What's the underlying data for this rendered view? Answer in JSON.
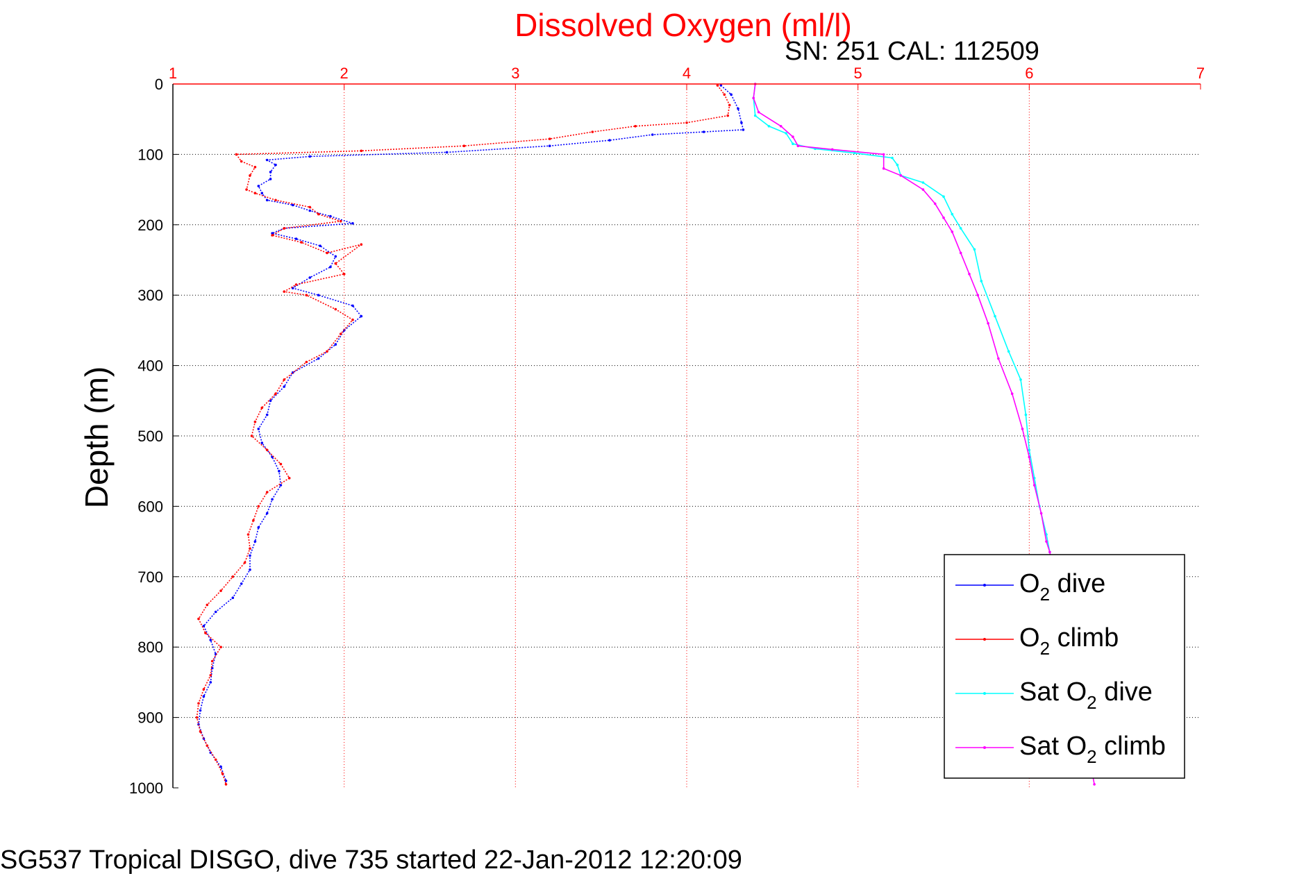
{
  "chart_data": {
    "type": "line",
    "title": "Dissolved Oxygen (ml/l)",
    "subtitle": "SN: 251  CAL: 112509",
    "ylabel": "Depth (m)",
    "xlabel": "",
    "footer": "SG537 Tropical DISGO, dive 735 started 22-Jan-2012 12:20:09",
    "xlim": [
      1,
      7
    ],
    "ylim": [
      0,
      1000
    ],
    "y_reversed": true,
    "x_axis_position": "top",
    "x_ticks": [
      "1",
      "2",
      "3",
      "4",
      "5",
      "6",
      "7"
    ],
    "y_ticks": [
      "0",
      "100",
      "200",
      "300",
      "400",
      "500",
      "600",
      "700",
      "800",
      "900",
      "1000"
    ],
    "grid": true,
    "legend_position": "bottom-right",
    "series": [
      {
        "name_main": "O",
        "name_sub": "2",
        "name_tail": " dive",
        "color": "#0000ff",
        "points": [
          [
            4.2,
            2
          ],
          [
            4.26,
            15
          ],
          [
            4.3,
            35
          ],
          [
            4.32,
            55
          ],
          [
            4.33,
            65
          ],
          [
            4.1,
            68
          ],
          [
            3.8,
            72
          ],
          [
            3.55,
            80
          ],
          [
            3.2,
            88
          ],
          [
            2.6,
            97
          ],
          [
            1.8,
            103
          ],
          [
            1.55,
            108
          ],
          [
            1.6,
            115
          ],
          [
            1.57,
            125
          ],
          [
            1.57,
            135
          ],
          [
            1.5,
            145
          ],
          [
            1.52,
            155
          ],
          [
            1.55,
            165
          ],
          [
            1.7,
            172
          ],
          [
            1.8,
            180
          ],
          [
            1.92,
            188
          ],
          [
            2.05,
            198
          ],
          [
            1.65,
            205
          ],
          [
            1.58,
            212
          ],
          [
            1.72,
            220
          ],
          [
            1.86,
            230
          ],
          [
            1.95,
            245
          ],
          [
            1.92,
            260
          ],
          [
            1.8,
            275
          ],
          [
            1.7,
            290
          ],
          [
            1.85,
            300
          ],
          [
            2.05,
            315
          ],
          [
            2.1,
            330
          ],
          [
            2.0,
            350
          ],
          [
            1.95,
            370
          ],
          [
            1.85,
            390
          ],
          [
            1.7,
            410
          ],
          [
            1.65,
            430
          ],
          [
            1.57,
            450
          ],
          [
            1.55,
            470
          ],
          [
            1.5,
            490
          ],
          [
            1.52,
            510
          ],
          [
            1.58,
            530
          ],
          [
            1.62,
            550
          ],
          [
            1.63,
            570
          ],
          [
            1.58,
            590
          ],
          [
            1.55,
            610
          ],
          [
            1.5,
            630
          ],
          [
            1.48,
            650
          ],
          [
            1.45,
            670
          ],
          [
            1.45,
            690
          ],
          [
            1.4,
            710
          ],
          [
            1.35,
            730
          ],
          [
            1.25,
            750
          ],
          [
            1.18,
            770
          ],
          [
            1.22,
            790
          ],
          [
            1.25,
            810
          ],
          [
            1.23,
            830
          ],
          [
            1.22,
            850
          ],
          [
            1.18,
            870
          ],
          [
            1.16,
            890
          ],
          [
            1.15,
            910
          ],
          [
            1.18,
            930
          ],
          [
            1.22,
            950
          ],
          [
            1.28,
            970
          ],
          [
            1.31,
            990
          ]
        ]
      },
      {
        "name_main": "O",
        "name_sub": "2",
        "name_tail": " climb",
        "color": "#ff0000",
        "points": [
          [
            4.18,
            2
          ],
          [
            4.22,
            15
          ],
          [
            4.25,
            30
          ],
          [
            4.24,
            45
          ],
          [
            4.0,
            55
          ],
          [
            3.7,
            60
          ],
          [
            3.45,
            68
          ],
          [
            3.2,
            78
          ],
          [
            2.7,
            88
          ],
          [
            2.1,
            95
          ],
          [
            1.37,
            100
          ],
          [
            1.4,
            110
          ],
          [
            1.48,
            118
          ],
          [
            1.45,
            130
          ],
          [
            1.43,
            150
          ],
          [
            1.48,
            155
          ],
          [
            1.6,
            165
          ],
          [
            1.8,
            175
          ],
          [
            1.85,
            185
          ],
          [
            1.98,
            195
          ],
          [
            1.65,
            205
          ],
          [
            1.58,
            215
          ],
          [
            1.75,
            225
          ],
          [
            1.9,
            240
          ],
          [
            2.1,
            228
          ],
          [
            1.95,
            255
          ],
          [
            2.0,
            270
          ],
          [
            1.72,
            285
          ],
          [
            1.65,
            295
          ],
          [
            1.78,
            300
          ],
          [
            1.95,
            320
          ],
          [
            2.05,
            335
          ],
          [
            1.98,
            355
          ],
          [
            1.9,
            380
          ],
          [
            1.78,
            395
          ],
          [
            1.65,
            420
          ],
          [
            1.6,
            440
          ],
          [
            1.52,
            460
          ],
          [
            1.48,
            480
          ],
          [
            1.46,
            500
          ],
          [
            1.55,
            520
          ],
          [
            1.63,
            540
          ],
          [
            1.68,
            560
          ],
          [
            1.55,
            580
          ],
          [
            1.5,
            600
          ],
          [
            1.47,
            620
          ],
          [
            1.44,
            640
          ],
          [
            1.45,
            660
          ],
          [
            1.42,
            680
          ],
          [
            1.35,
            700
          ],
          [
            1.28,
            720
          ],
          [
            1.2,
            740
          ],
          [
            1.15,
            760
          ],
          [
            1.19,
            780
          ],
          [
            1.28,
            800
          ],
          [
            1.23,
            820
          ],
          [
            1.22,
            840
          ],
          [
            1.18,
            860
          ],
          [
            1.15,
            880
          ],
          [
            1.14,
            900
          ],
          [
            1.16,
            920
          ],
          [
            1.2,
            940
          ],
          [
            1.25,
            960
          ],
          [
            1.29,
            980
          ],
          [
            1.31,
            995
          ]
        ]
      },
      {
        "name_main": "Sat O",
        "name_sub": "2",
        "name_tail": " dive",
        "color": "#00ffff",
        "points": [
          [
            4.4,
            0
          ],
          [
            4.39,
            20
          ],
          [
            4.4,
            45
          ],
          [
            4.48,
            60
          ],
          [
            4.58,
            70
          ],
          [
            4.62,
            85
          ],
          [
            4.75,
            92
          ],
          [
            4.98,
            98
          ],
          [
            5.2,
            105
          ],
          [
            5.23,
            115
          ],
          [
            5.25,
            130
          ],
          [
            5.38,
            140
          ],
          [
            5.5,
            160
          ],
          [
            5.55,
            185
          ],
          [
            5.6,
            205
          ],
          [
            5.68,
            235
          ],
          [
            5.72,
            280
          ],
          [
            5.8,
            330
          ],
          [
            5.88,
            380
          ],
          [
            5.95,
            420
          ],
          [
            5.98,
            470
          ],
          [
            6.0,
            520
          ],
          [
            6.03,
            560
          ],
          [
            6.06,
            600
          ],
          [
            6.1,
            640
          ],
          [
            6.12,
            665
          ]
        ]
      },
      {
        "name_main": "Sat O",
        "name_sub": "2",
        "name_tail": " climb",
        "color": "#ff00ff",
        "points": [
          [
            4.4,
            0
          ],
          [
            4.39,
            20
          ],
          [
            4.42,
            40
          ],
          [
            4.55,
            60
          ],
          [
            4.62,
            75
          ],
          [
            4.65,
            88
          ],
          [
            4.85,
            93
          ],
          [
            5.15,
            100
          ],
          [
            5.15,
            120
          ],
          [
            5.25,
            130
          ],
          [
            5.38,
            150
          ],
          [
            5.45,
            170
          ],
          [
            5.5,
            190
          ],
          [
            5.55,
            210
          ],
          [
            5.6,
            240
          ],
          [
            5.65,
            270
          ],
          [
            5.7,
            300
          ],
          [
            5.76,
            340
          ],
          [
            5.82,
            390
          ],
          [
            5.9,
            440
          ],
          [
            5.96,
            490
          ],
          [
            6.0,
            530
          ],
          [
            6.03,
            570
          ],
          [
            6.07,
            610
          ],
          [
            6.1,
            650
          ],
          [
            6.12,
            665
          ],
          [
            6.38,
            995
          ]
        ]
      }
    ]
  }
}
